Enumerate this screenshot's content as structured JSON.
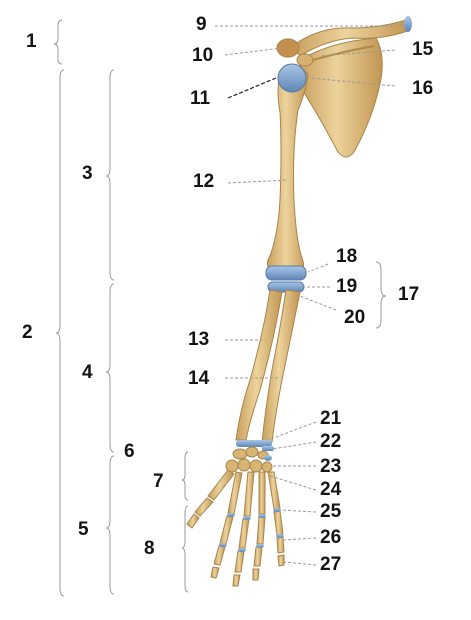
{
  "labels": {
    "l1": "1",
    "l2": "2",
    "l3": "3",
    "l4": "4",
    "l5": "5",
    "l6": "6",
    "l7": "7",
    "l8": "8",
    "l9": "9",
    "l10": "10",
    "l11": "11",
    "l12": "12",
    "l13": "13",
    "l14": "14",
    "l15": "15",
    "l16": "16",
    "l17": "17",
    "l18": "18",
    "l19": "19",
    "l20": "20",
    "l21": "21",
    "l22": "22",
    "l23": "23",
    "l24": "24",
    "l25": "25",
    "l26": "26",
    "l27": "27"
  },
  "colors": {
    "bone": "#e6c98c",
    "bone_shade": "#c79e5b",
    "bone_outline": "#a8834a",
    "cartilage": "#7fa6cf",
    "label": "#141414",
    "leader": "#9a9a9a",
    "bracket": "#9a9a9a"
  }
}
